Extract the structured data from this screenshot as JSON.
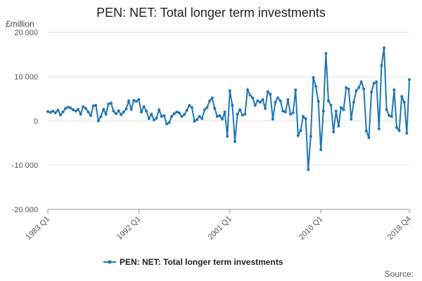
{
  "chart_data": {
    "type": "line",
    "title": "PEN: NET: Total longer term investments",
    "y_unit_label": "£million",
    "ylim": [
      -20000,
      20000
    ],
    "y_ticks": [
      20000,
      10000,
      0,
      -10000,
      -20000
    ],
    "y_tick_labels": [
      "20 000",
      "10 000",
      "0",
      "-10 000",
      "-20 000"
    ],
    "x_tick_labels": [
      "1983 Q1",
      "1992 Q1",
      "2001 Q1",
      "2010 Q1",
      "2018 Q4"
    ],
    "x_tick_quarter_index": [
      0,
      36,
      72,
      108,
      143
    ],
    "grid": true,
    "legend_position": "bottom",
    "source_label": "Source:",
    "color": "#1f77b4",
    "series": [
      {
        "name": "PEN: NET: Total longer term investments",
        "values": [
          2100,
          1900,
          2200,
          1800,
          2400,
          1300,
          2000,
          2800,
          3100,
          2900,
          2500,
          2200,
          2600,
          1500,
          3200,
          2800,
          2000,
          1200,
          3400,
          3500,
          0,
          1000,
          2600,
          1500,
          3800,
          4000,
          2200,
          1600,
          2300,
          1400,
          2000,
          2700,
          4500,
          2600,
          4600,
          4400,
          4800,
          2000,
          3200,
          2200,
          500,
          1500,
          200,
          600,
          2500,
          1000,
          1200,
          -700,
          -400,
          1000,
          1600,
          2000,
          1800,
          1000,
          1400,
          2400,
          3500,
          3000,
          -100,
          300,
          1000,
          500,
          2500,
          3000,
          4500,
          5200,
          2800,
          1000,
          1200,
          400,
          2000,
          -3500,
          6800,
          3500,
          -4700,
          1500,
          2500,
          1300,
          1500,
          7000,
          5800,
          5200,
          3500,
          4500,
          4200,
          4800,
          2800,
          6600,
          6000,
          400,
          4200,
          5200,
          4500,
          2200,
          2000,
          4800,
          1500,
          1800,
          7000,
          -3300,
          -2200,
          1000,
          500,
          -11000,
          -3500,
          9800,
          7800,
          4400,
          -6500,
          2200,
          15200,
          4500,
          3500,
          -2500,
          2200,
          -1200,
          3000,
          2500,
          7500,
          7200,
          400,
          4200,
          6800,
          7500,
          8800,
          7200,
          -2300,
          -3800,
          6500,
          8500,
          8800,
          -1800,
          12500,
          16500,
          2500,
          1200,
          1000,
          7000,
          -1500,
          -2200,
          5500,
          4200,
          -2800,
          9300
        ]
      }
    ]
  }
}
